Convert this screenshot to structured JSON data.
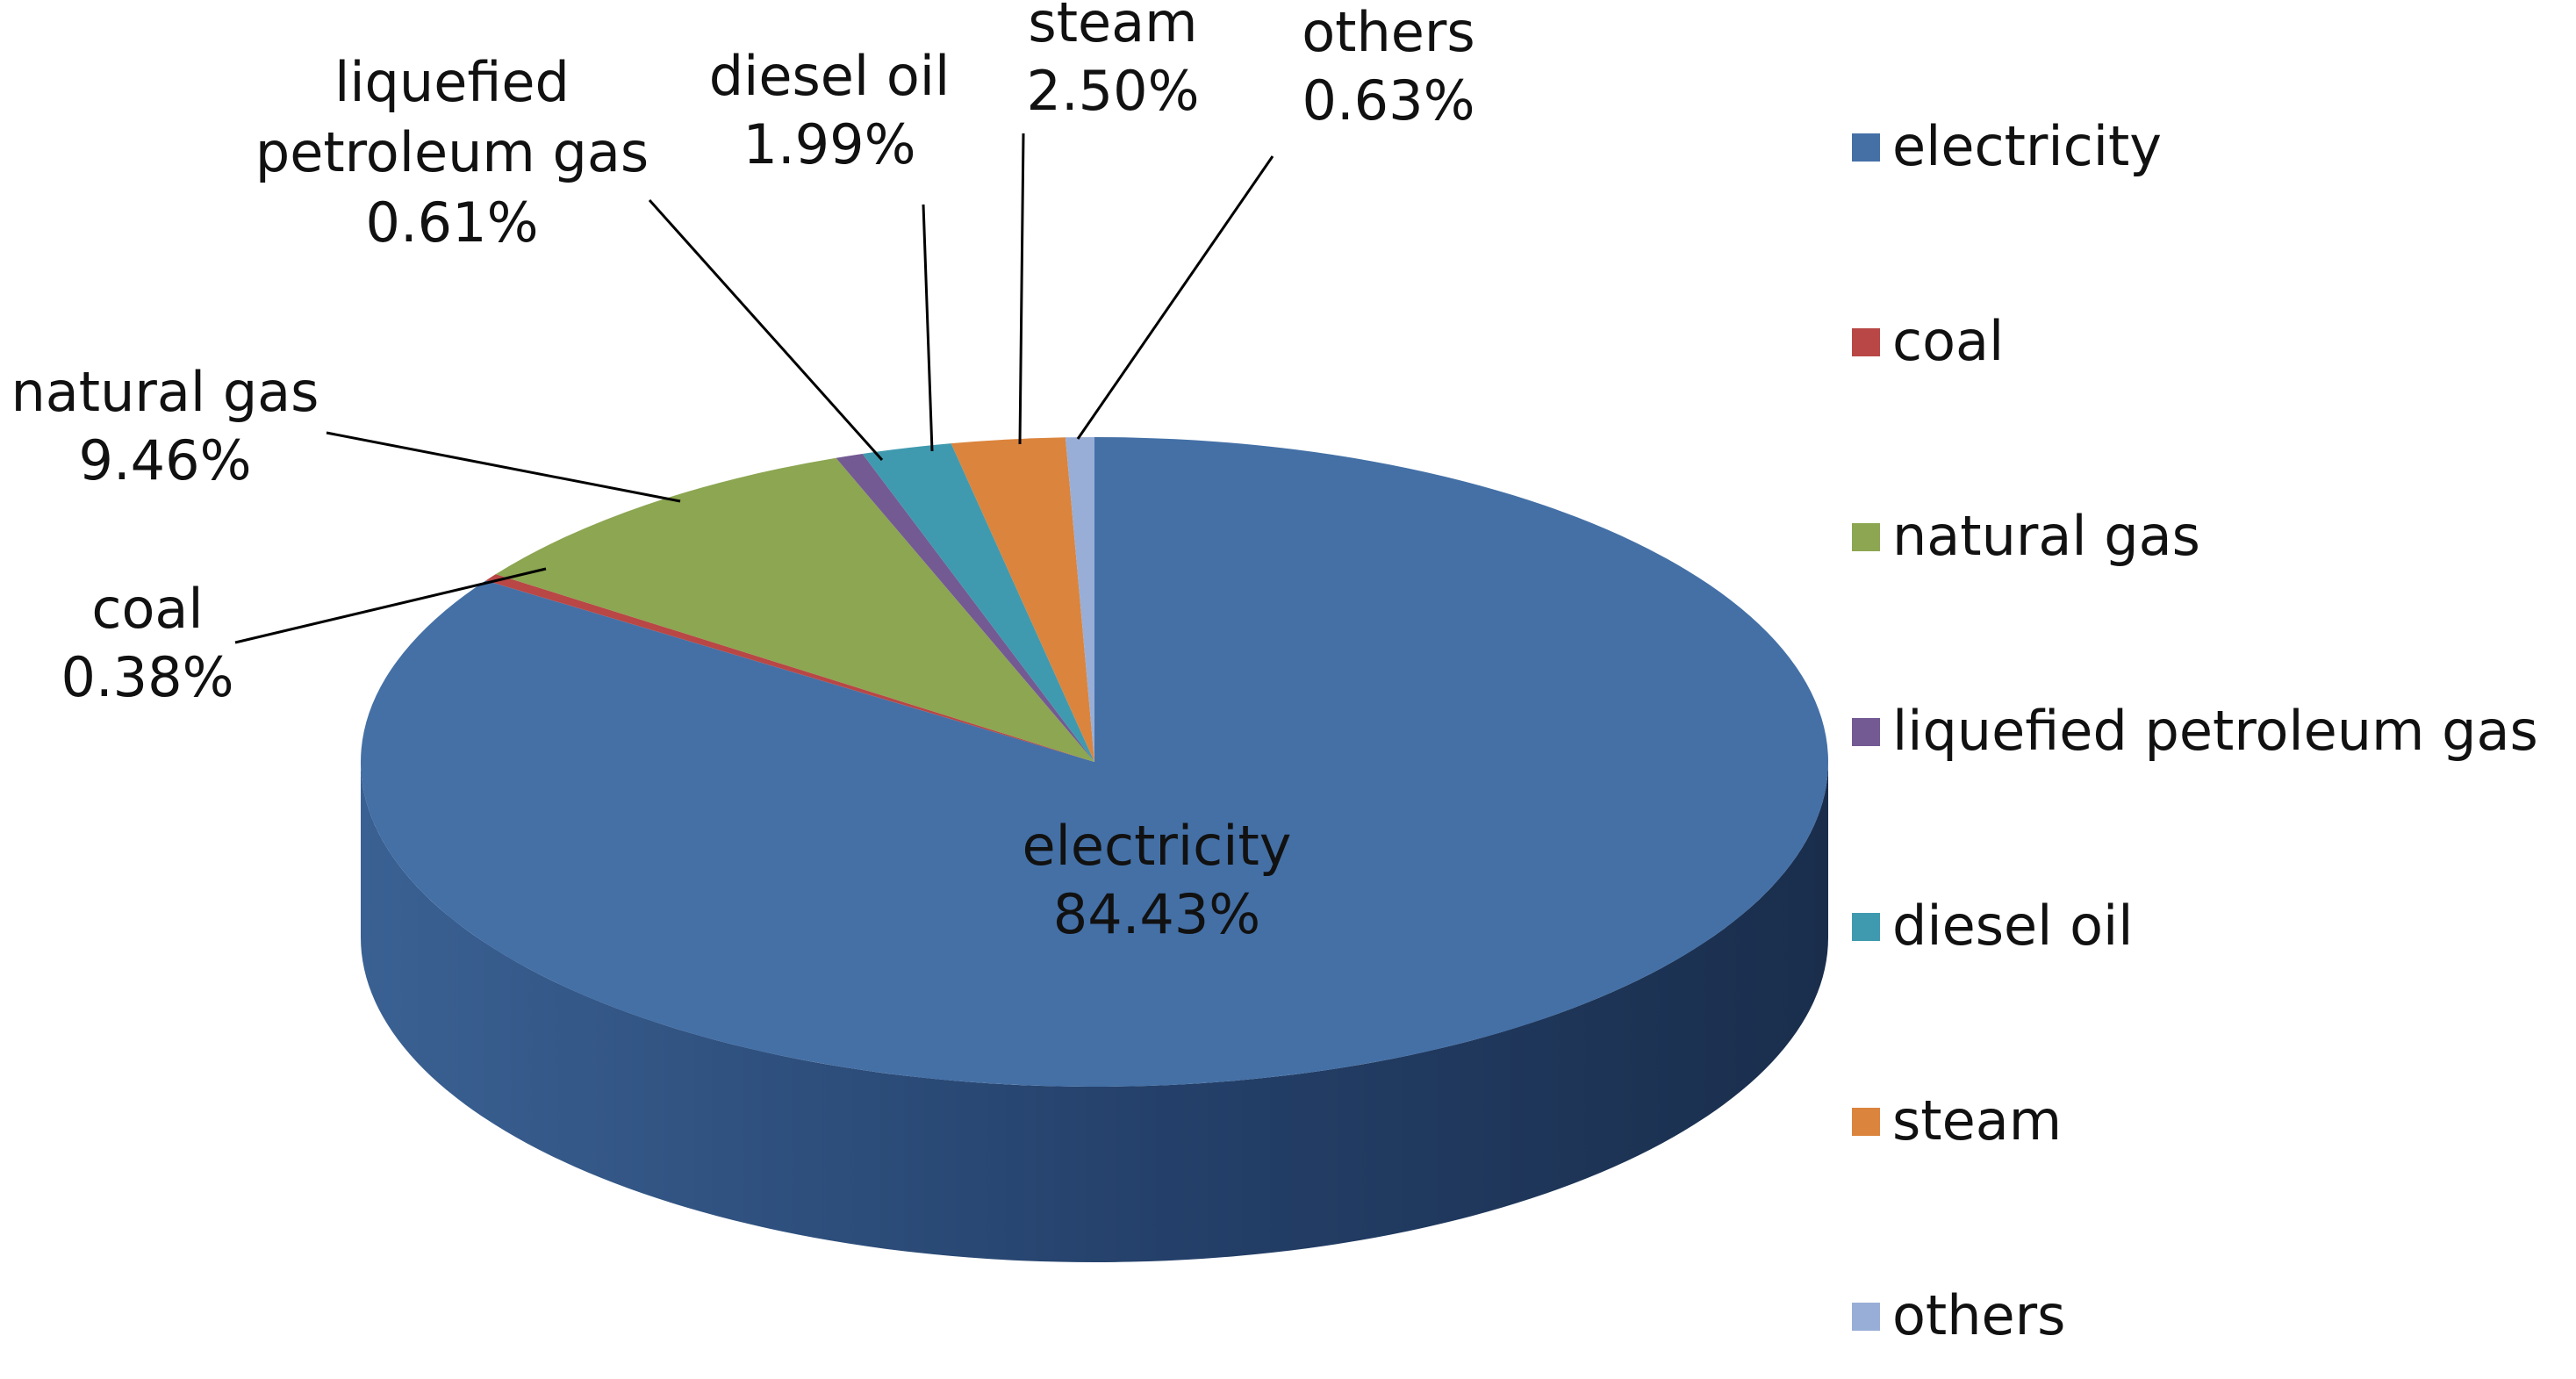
{
  "chart_data": {
    "type": "pie",
    "style": "3d",
    "start_angle_deg": 90,
    "direction": "clockwise",
    "legend": "right",
    "slices": [
      {
        "name": "electricity",
        "label": "electricity",
        "value": 84.43,
        "value_text": "84.43%",
        "color": "#4470A6"
      },
      {
        "name": "coal",
        "label": "coal",
        "value": 0.38,
        "value_text": "0.38%",
        "color": "#B84745"
      },
      {
        "name": "natural gas",
        "label": "natural gas",
        "value": 9.46,
        "value_text": "9.46%",
        "color": "#8CA651"
      },
      {
        "name": "liquefied petroleum gas",
        "label": "liquefied petroleum gas",
        "label_lines": [
          "liquefied",
          "petroleum gas"
        ],
        "value": 0.61,
        "value_text": "0.61%",
        "color": "#735A93"
      },
      {
        "name": "diesel oil",
        "label": "diesel oil",
        "value": 1.99,
        "value_text": "1.99%",
        "color": "#3F9AAF"
      },
      {
        "name": "steam",
        "label": "steam",
        "value": 2.5,
        "value_text": "2.50%",
        "color": "#DB843D"
      },
      {
        "name": "others",
        "label": "others",
        "value": 0.63,
        "value_text": "0.63%",
        "color": "#98AED6"
      }
    ]
  }
}
